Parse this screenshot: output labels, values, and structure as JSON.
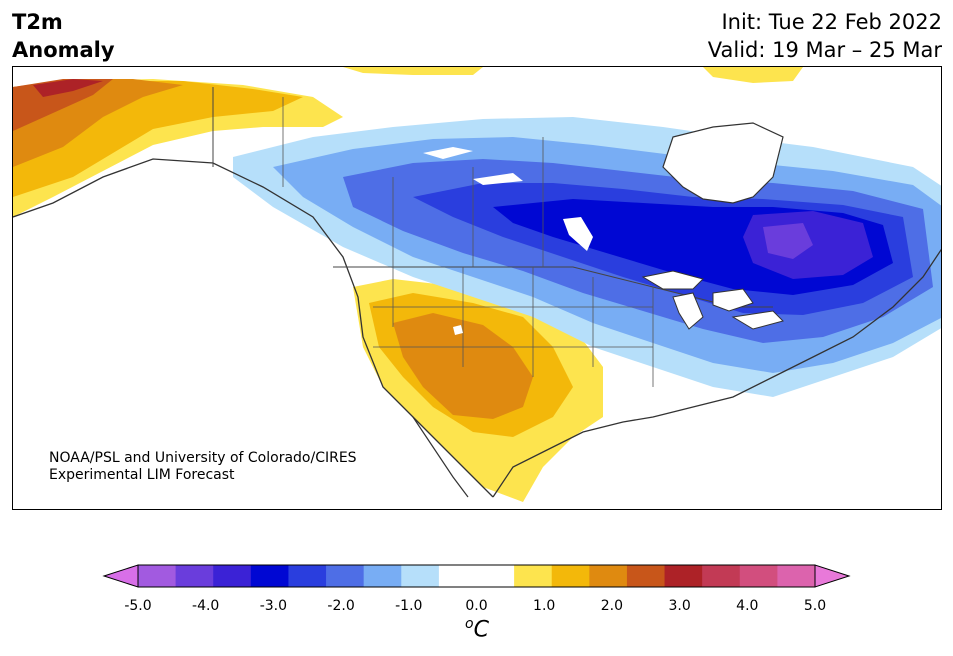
{
  "header": {
    "title_line1": "T2m",
    "title_line2": "Anomaly",
    "init": "Init: Tue 22 Feb 2022",
    "valid": "Valid: 19 Mar – 25 Mar"
  },
  "credit": {
    "line1": "NOAA/PSL and University of Colorado/CIRES",
    "line2": "Experimental LIM Forecast"
  },
  "colorbar": {
    "ticks": [
      "-5.0",
      "-4.0",
      "-3.0",
      "-2.0",
      "-1.0",
      "0.0",
      "1.0",
      "2.0",
      "3.0",
      "4.0",
      "5.0"
    ],
    "unit_base": "o",
    "unit_letter": "C",
    "colors": [
      "#d86fe8",
      "#a25ae0",
      "#6a3ddc",
      "#3b22d6",
      "#0007d3",
      "#2a3ede",
      "#4e6ee6",
      "#78adf4",
      "#b6dffa",
      "#ffffff",
      "#ffffff",
      "#fde44e",
      "#f3b80a",
      "#df8a10",
      "#c8561a",
      "#ad2227",
      "#c23a55",
      "#d24e7e",
      "#dc63ad",
      "#e879d9"
    ]
  }
}
